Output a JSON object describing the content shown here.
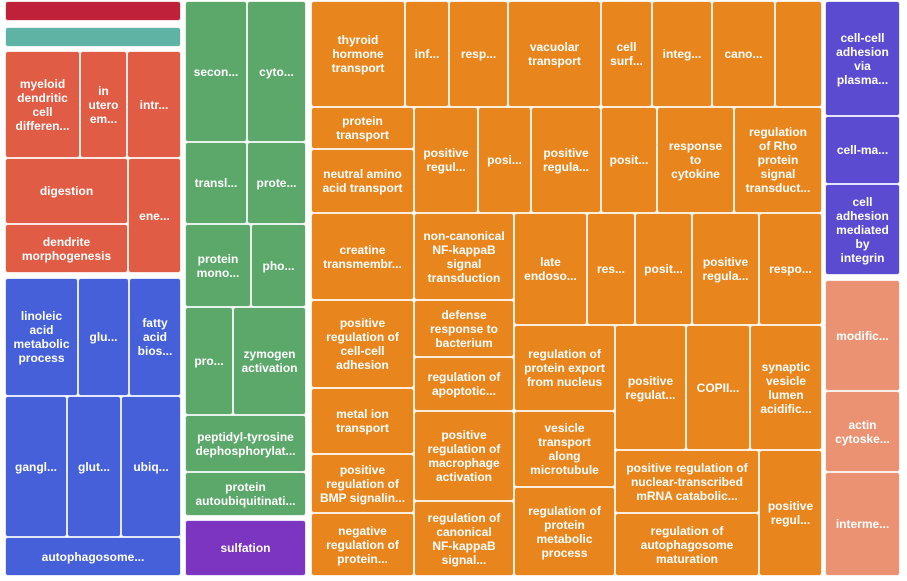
{
  "chart_data": {
    "type": "treemap",
    "groups": [
      {
        "color": "#c0213a",
        "tiles": [
          {
            "label": ""
          }
        ]
      },
      {
        "color": "#5fb3a5",
        "tiles": [
          {
            "label": ""
          }
        ]
      },
      {
        "color": "#e05c44",
        "tiles": [
          {
            "label": "myeloid\ndendritic\ncell\ndifferen..."
          },
          {
            "label": "in\nutero\nem..."
          },
          {
            "label": "intr..."
          },
          {
            "label": "digestion"
          },
          {
            "label": "ene..."
          },
          {
            "label": "dendrite\nmorphogenesis"
          }
        ]
      },
      {
        "color": "#4560d8",
        "tiles": [
          {
            "label": "linoleic\nacid\nmetabolic\nprocess"
          },
          {
            "label": "glu..."
          },
          {
            "label": "fatty\nacid\nbios..."
          },
          {
            "label": "gangl..."
          },
          {
            "label": "glut..."
          },
          {
            "label": "ubiq..."
          },
          {
            "label": "autophagosome..."
          }
        ]
      },
      {
        "color": "#5ba86a",
        "tiles": [
          {
            "label": "secon..."
          },
          {
            "label": "cyto..."
          },
          {
            "label": "transl..."
          },
          {
            "label": "prote..."
          },
          {
            "label": "protein\nmono..."
          },
          {
            "label": "pho..."
          },
          {
            "label": "pro..."
          },
          {
            "label": "zymogen\nactivation"
          },
          {
            "label": "peptidyl-tyrosine\ndephosphorylat..."
          },
          {
            "label": "protein\nautoubiquitinati..."
          }
        ]
      },
      {
        "color": "#7b35c0",
        "tiles": [
          {
            "label": "sulfation"
          }
        ]
      },
      {
        "color": "#e8861d",
        "tiles": [
          {
            "label": "thyroid\nhormone\ntransport"
          },
          {
            "label": "inf..."
          },
          {
            "label": "resp..."
          },
          {
            "label": "vacuolar\ntransport"
          },
          {
            "label": "cell\nsurf..."
          },
          {
            "label": "integ..."
          },
          {
            "label": "cano..."
          },
          {
            "label": ""
          },
          {
            "label": "protein\ntransport"
          },
          {
            "label": "positive\nregul..."
          },
          {
            "label": "posi..."
          },
          {
            "label": "positive\nregula..."
          },
          {
            "label": "posit..."
          },
          {
            "label": "response\nto\ncytokine"
          },
          {
            "label": "regulation\nof Rho\nprotein\nsignal\ntransduct..."
          },
          {
            "label": "neutral amino\nacid transport"
          },
          {
            "label": "creatine\ntransmembr..."
          },
          {
            "label": "non-canonical\nNF-kappaB\nsignal\ntransduction"
          },
          {
            "label": "late\nendoso..."
          },
          {
            "label": "res..."
          },
          {
            "label": "posit..."
          },
          {
            "label": "positive\nregula..."
          },
          {
            "label": "respo..."
          },
          {
            "label": "defense\nresponse to\nbacterium"
          },
          {
            "label": "positive\nregulation of\ncell-cell\nadhesion"
          },
          {
            "label": "regulation of\napoptotic..."
          },
          {
            "label": "regulation of\nprotein export\nfrom nucleus"
          },
          {
            "label": "positive\nregulat..."
          },
          {
            "label": "COPII..."
          },
          {
            "label": "synaptic\nvesicle\nlumen\nacidific..."
          },
          {
            "label": "metal ion\ntransport"
          },
          {
            "label": "positive\nregulation of\nmacrophage\nactivation"
          },
          {
            "label": "vesicle\ntransport\nalong\nmicrotubule"
          },
          {
            "label": "positive\nregulation of\nBMP signalin..."
          },
          {
            "label": "positive regulation of\nnuclear-transcribed\nmRNA catabolic..."
          },
          {
            "label": "positive\nregul..."
          },
          {
            "label": "negative\nregulation of\nprotein..."
          },
          {
            "label": "regulation of\ncanonical\nNF-kappaB\nsignal..."
          },
          {
            "label": "regulation of\nprotein\nmetabolic\nprocess"
          },
          {
            "label": "regulation of\nautophagosome\nmaturation"
          }
        ]
      },
      {
        "color": "#5b4bd0",
        "tiles": [
          {
            "label": "cell-cell\nadhesion\nvia\nplasma..."
          },
          {
            "label": "cell-ma..."
          },
          {
            "label": "cell\nadhesion\nmediated\nby\nintegrin"
          }
        ]
      },
      {
        "color": "#eb9272",
        "tiles": [
          {
            "label": "modific..."
          },
          {
            "label": "actin\ncytoske..."
          },
          {
            "label": "interme..."
          }
        ]
      }
    ]
  }
}
